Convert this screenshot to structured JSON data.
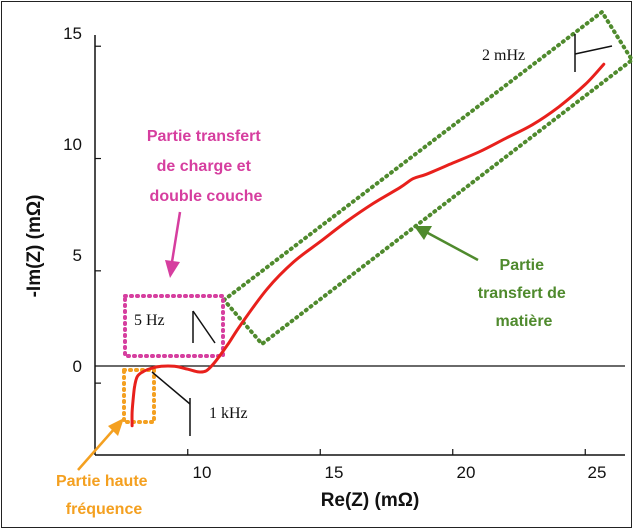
{
  "colors": {
    "curve": "#e8201c",
    "pink": "#d63e9f",
    "green": "#4f8a2d",
    "orange": "#f4a020",
    "axis": "#111111"
  },
  "chart_data": {
    "type": "line",
    "title": "",
    "xlabel": "Re(Z) (mΩ)",
    "ylabel": "-Im(Z) (mΩ)",
    "xlim": [
      6.5,
      26.5
    ],
    "ylim": [
      -3.2,
      15.5
    ],
    "xticks": [
      10,
      15,
      20,
      25
    ],
    "yticks": [
      0,
      5,
      10,
      15
    ],
    "grid": false,
    "series": [
      {
        "x": [
          7.9,
          7.9,
          7.95,
          8.0,
          8.1,
          8.3,
          8.6,
          9.0,
          9.5,
          10.0,
          10.4,
          10.7,
          11.0,
          11.5,
          12.0,
          13.0,
          14.0,
          15.0,
          16.0,
          17.0,
          18.0,
          18.5,
          19.0,
          20.0,
          21.0,
          22.0,
          23.0,
          24.0,
          25.0,
          25.7
        ],
        "y": [
          -1.9,
          -1.3,
          -0.6,
          -0.1,
          0.3,
          0.5,
          0.65,
          0.75,
          0.75,
          0.62,
          0.5,
          0.55,
          0.9,
          1.7,
          2.6,
          4.2,
          5.4,
          6.3,
          7.2,
          8.0,
          8.7,
          9.1,
          9.3,
          9.8,
          10.3,
          10.9,
          11.5,
          12.3,
          13.3,
          14.2
        ]
      }
    ],
    "frequency_labels": [
      "2 mHz",
      "5 Hz",
      "1 kHz"
    ]
  },
  "annotations": {
    "charge_transfer": [
      "Partie transfert",
      "de charge et",
      "double couche"
    ],
    "mass_transfer": [
      "Partie",
      "transfert de",
      "matière"
    ],
    "high_freq": [
      "Partie haute",
      "fréquence"
    ]
  }
}
